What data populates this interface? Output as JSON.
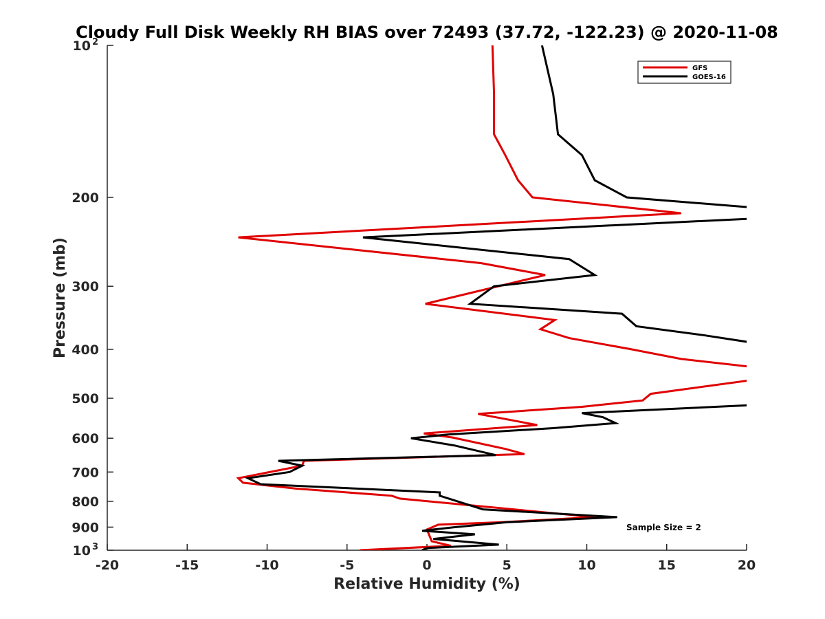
{
  "chart_data": {
    "type": "line",
    "title": "Cloudy Full Disk Weekly RH BIAS over 72493 (37.72, -122.23) @ 2020-11-08",
    "xlabel": "Relative Humidity (%)",
    "ylabel": "Pressure (mb)",
    "xlim": [
      -20,
      20
    ],
    "ylim": [
      100,
      1000
    ],
    "y_scale": "log",
    "y_reversed": true,
    "grid": false,
    "legend_position": "top-right",
    "x_ticks": [
      {
        "value": -20,
        "label": "-20"
      },
      {
        "value": -15,
        "label": "-15"
      },
      {
        "value": -10,
        "label": "-10"
      },
      {
        "value": -5,
        "label": "-5"
      },
      {
        "value": 0,
        "label": "0"
      },
      {
        "value": 5,
        "label": "5"
      },
      {
        "value": 10,
        "label": "10"
      },
      {
        "value": 15,
        "label": "15"
      },
      {
        "value": 20,
        "label": "20"
      }
    ],
    "y_ticks": [
      {
        "value": 100,
        "label": "10",
        "sup": "2"
      },
      {
        "value": 200,
        "label": "200"
      },
      {
        "value": 300,
        "label": "300"
      },
      {
        "value": 400,
        "label": "400"
      },
      {
        "value": 500,
        "label": "500"
      },
      {
        "value": 600,
        "label": "600"
      },
      {
        "value": 700,
        "label": "700"
      },
      {
        "value": 800,
        "label": "800"
      },
      {
        "value": 900,
        "label": "900"
      },
      {
        "value": 1000,
        "label": "10",
        "sup": "3"
      }
    ],
    "series": [
      {
        "name": "GFS",
        "color": "#e00000",
        "points": [
          {
            "p": 100,
            "x": 4.1
          },
          {
            "p": 125,
            "x": 4.2
          },
          {
            "p": 150,
            "x": 4.2
          },
          {
            "p": 165,
            "x": 4.9
          },
          {
            "p": 185,
            "x": 5.7
          },
          {
            "p": 200,
            "x": 6.6
          },
          {
            "p": 215,
            "x": 15.9
          },
          {
            "p": 240,
            "x": -11.8
          },
          {
            "p": 270,
            "x": 3.4
          },
          {
            "p": 285,
            "x": 7.4
          },
          {
            "p": 325,
            "x": -0.1
          },
          {
            "p": 350,
            "x": 8.0
          },
          {
            "p": 365,
            "x": 7.1
          },
          {
            "p": 380,
            "x": 8.9
          },
          {
            "p": 400,
            "x": 12.8
          },
          {
            "p": 418,
            "x": 15.9
          },
          {
            "p": 435,
            "x": 20.8
          },
          {
            "p": 458,
            "x": 20.8
          },
          {
            "p": 490,
            "x": 14.0
          },
          {
            "p": 505,
            "x": 13.5
          },
          {
            "p": 520,
            "x": 9.7
          },
          {
            "p": 537,
            "x": 3.2
          },
          {
            "p": 565,
            "x": 6.9
          },
          {
            "p": 587,
            "x": -0.2
          },
          {
            "p": 598,
            "x": 1.6
          },
          {
            "p": 630,
            "x": 4.9
          },
          {
            "p": 645,
            "x": 6.1
          },
          {
            "p": 665,
            "x": -7.7
          },
          {
            "p": 680,
            "x": -7.8
          },
          {
            "p": 720,
            "x": -11.8
          },
          {
            "p": 735,
            "x": -11.5
          },
          {
            "p": 755,
            "x": -8.2
          },
          {
            "p": 780,
            "x": -2.2
          },
          {
            "p": 790,
            "x": -1.7
          },
          {
            "p": 860,
            "x": 10.5
          },
          {
            "p": 880,
            "x": 4.7
          },
          {
            "p": 890,
            "x": 0.7
          },
          {
            "p": 910,
            "x": 0.0
          },
          {
            "p": 960,
            "x": 0.3
          },
          {
            "p": 980,
            "x": 1.5
          },
          {
            "p": 1000,
            "x": -4.2
          }
        ]
      },
      {
        "name": "GOES-16",
        "color": "#000000",
        "points": [
          {
            "p": 100,
            "x": 7.2
          },
          {
            "p": 125,
            "x": 7.9
          },
          {
            "p": 150,
            "x": 8.2
          },
          {
            "p": 165,
            "x": 9.7
          },
          {
            "p": 185,
            "x": 10.5
          },
          {
            "p": 200,
            "x": 12.5
          },
          {
            "p": 210,
            "x": 20.8
          },
          {
            "p": 220,
            "x": 20.8
          },
          {
            "p": 240,
            "x": -4.0
          },
          {
            "p": 265,
            "x": 8.9
          },
          {
            "p": 285,
            "x": 10.5
          },
          {
            "p": 300,
            "x": 4.2
          },
          {
            "p": 325,
            "x": 2.7
          },
          {
            "p": 340,
            "x": 12.2
          },
          {
            "p": 360,
            "x": 13.1
          },
          {
            "p": 375,
            "x": 17.3
          },
          {
            "p": 390,
            "x": 20.8
          },
          {
            "p": 515,
            "x": 20.8
          },
          {
            "p": 535,
            "x": 9.7
          },
          {
            "p": 545,
            "x": 11.0
          },
          {
            "p": 560,
            "x": 11.8
          },
          {
            "p": 573,
            "x": 7.9
          },
          {
            "p": 590,
            "x": 1.3
          },
          {
            "p": 600,
            "x": -1.0
          },
          {
            "p": 620,
            "x": 1.7
          },
          {
            "p": 648,
            "x": 4.3
          },
          {
            "p": 665,
            "x": -9.3
          },
          {
            "p": 680,
            "x": -7.8
          },
          {
            "p": 700,
            "x": -8.6
          },
          {
            "p": 720,
            "x": -11.2
          },
          {
            "p": 740,
            "x": -10.4
          },
          {
            "p": 768,
            "x": 0.8
          },
          {
            "p": 780,
            "x": 0.8
          },
          {
            "p": 830,
            "x": 3.5
          },
          {
            "p": 860,
            "x": 11.9
          },
          {
            "p": 880,
            "x": 5.0
          },
          {
            "p": 900,
            "x": 1.8
          },
          {
            "p": 915,
            "x": -0.3
          },
          {
            "p": 930,
            "x": 3.0
          },
          {
            "p": 950,
            "x": 0.4
          },
          {
            "p": 975,
            "x": 4.5
          },
          {
            "p": 990,
            "x": 0.0
          },
          {
            "p": 1000,
            "x": -0.3
          }
        ]
      }
    ],
    "annotations": [
      {
        "text": "Sample Size = 2"
      }
    ]
  }
}
